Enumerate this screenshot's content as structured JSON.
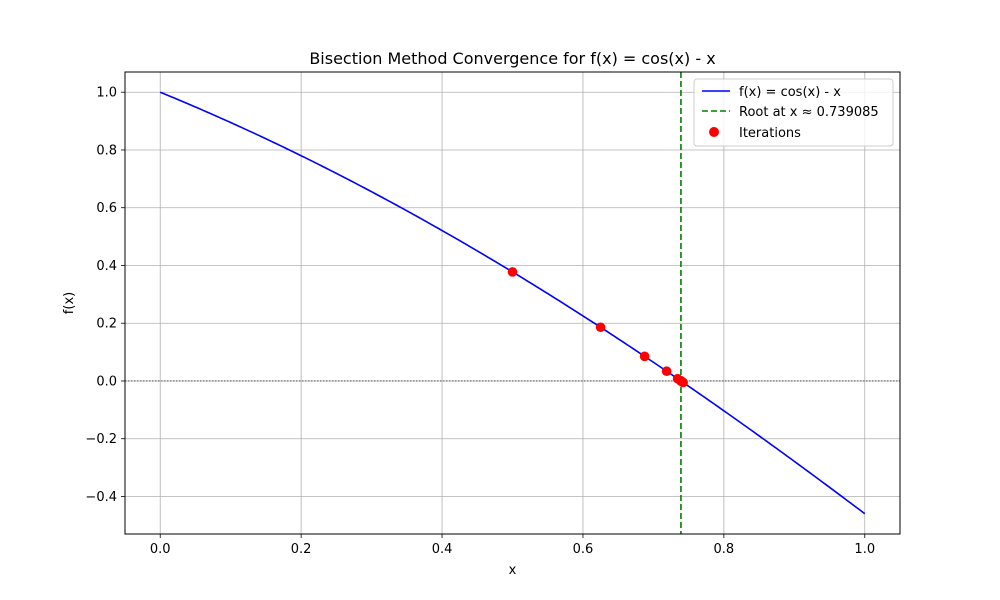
{
  "chart_data": {
    "type": "line",
    "title": "Bisection Method Convergence for f(x) = cos(x) - x",
    "xlabel": "x",
    "ylabel": "f(x)",
    "xlim": [
      -0.05,
      1.05
    ],
    "ylim": [
      -0.53,
      1.07
    ],
    "x_ticks": [
      0.0,
      0.2,
      0.4,
      0.6,
      0.8,
      1.0
    ],
    "x_tick_labels": [
      "0.0",
      "0.2",
      "0.4",
      "0.6",
      "0.8",
      "1.0"
    ],
    "y_ticks": [
      -0.4,
      -0.2,
      0.0,
      0.2,
      0.4,
      0.6,
      0.8,
      1.0
    ],
    "y_tick_labels": [
      "−0.4",
      "−0.2",
      "0.0",
      "0.2",
      "0.4",
      "0.6",
      "0.8",
      "1.0"
    ],
    "grid": true,
    "legend_position": "top-right",
    "curve": {
      "name": "f(x) = cos(x) - x",
      "color": "#0000ff",
      "x_range": [
        0.0,
        1.0
      ],
      "function": "cos(x) - x"
    },
    "root_line": {
      "name": "Root at x ≈ 0.739085",
      "x": 0.739085,
      "color": "#008000",
      "style": "dashed"
    },
    "zero_line": {
      "y": 0.0,
      "color": "#000000",
      "style": "dotted"
    },
    "iterations": {
      "name": "Iterations",
      "color": "#ff0000",
      "x": [
        0.5,
        0.625,
        0.6875,
        0.71875,
        0.734375,
        0.7421875,
        0.73828125,
        0.740234375,
        0.7392578125,
        0.73876953125
      ],
      "y": [
        0.3776,
        0.186,
        0.0853,
        0.0338,
        0.0078,
        -0.0052,
        0.0013,
        -0.002,
        -0.0003,
        0.0005
      ]
    }
  }
}
